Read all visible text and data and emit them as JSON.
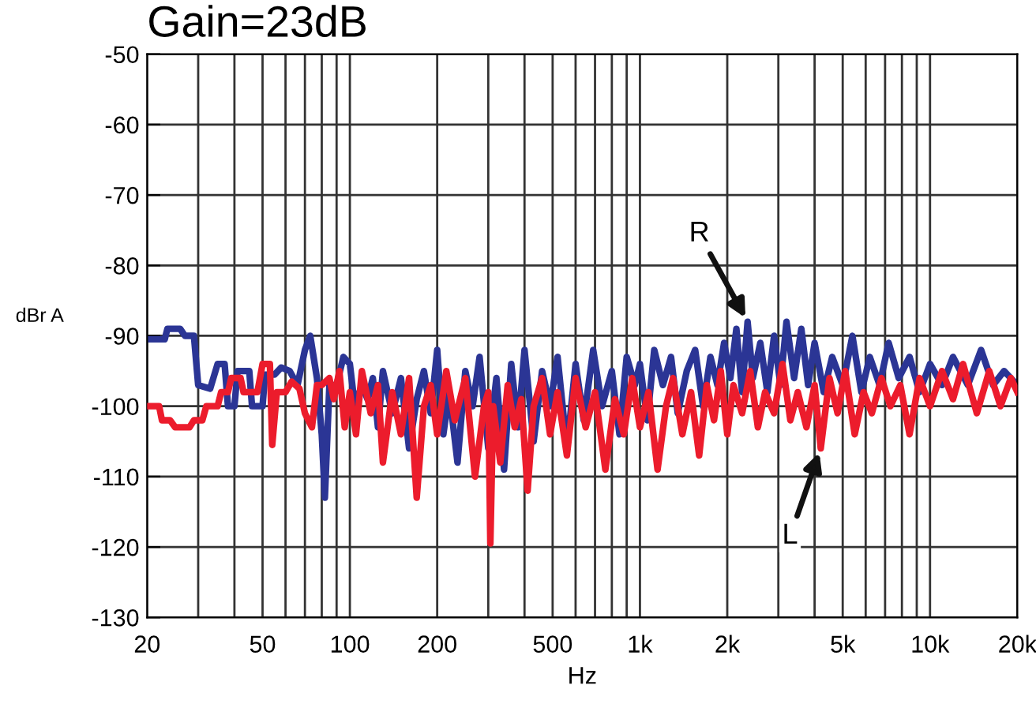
{
  "chart_data": {
    "type": "line",
    "title": "Gain=23dB",
    "xlabel": "Hz",
    "ylabel": "dBr A",
    "log": "x",
    "grid": true,
    "marker": "none",
    "line_style": "solid",
    "xlim": [
      20,
      20000
    ],
    "ylim": [
      -130,
      -50
    ],
    "xticks": [
      20,
      {
        "value": 30,
        "label": null
      },
      {
        "value": 40,
        "label": null
      },
      50,
      {
        "value": 60,
        "label": null
      },
      {
        "value": 70,
        "label": null
      },
      {
        "value": 80,
        "label": null
      },
      {
        "value": 90,
        "label": null
      },
      100,
      200,
      {
        "value": 300,
        "label": null
      },
      {
        "value": 400,
        "label": null
      },
      500,
      {
        "value": 600,
        "label": null
      },
      {
        "value": 700,
        "label": null
      },
      {
        "value": 800,
        "label": null
      },
      {
        "value": 900,
        "label": null
      },
      {
        "value": 1000,
        "label": "1k"
      },
      {
        "value": 2000,
        "label": "2k"
      },
      {
        "value": 3000,
        "label": null
      },
      {
        "value": 4000,
        "label": null
      },
      {
        "value": 5000,
        "label": "5k"
      },
      {
        "value": 6000,
        "label": null
      },
      {
        "value": 7000,
        "label": null
      },
      {
        "value": 8000,
        "label": null
      },
      {
        "value": 9000,
        "label": null
      },
      {
        "value": 10000,
        "label": "10k"
      },
      {
        "value": 20000,
        "label": "20k"
      }
    ],
    "yticks": [
      -130,
      -120,
      -110,
      -100,
      -90,
      -80,
      -70,
      -60,
      -50
    ],
    "annotations": [
      {
        "text": "R",
        "x": 2350,
        "y": -88
      },
      {
        "text": "L",
        "x": 4200,
        "y": -106
      }
    ],
    "series": [
      {
        "color": "#2b3595",
        "x": [
          20,
          23,
          23.5,
          26,
          27,
          29,
          30,
          33,
          35,
          37,
          38,
          40,
          41,
          45,
          46,
          50,
          51,
          55,
          58,
          62,
          66,
          70,
          73,
          77,
          80,
          82,
          85,
          90,
          95,
          100,
          104,
          110,
          115,
          120,
          125,
          130,
          140,
          150,
          160,
          170,
          180,
          190,
          200,
          210,
          220,
          235,
          250,
          265,
          280,
          300,
          320,
          340,
          360,
          380,
          400,
          430,
          460,
          490,
          520,
          560,
          600,
          640,
          690,
          740,
          800,
          850,
          900,
          960,
          1000,
          1060,
          1120,
          1200,
          1280,
          1350,
          1450,
          1550,
          1650,
          1750,
          1850,
          1950,
          2050,
          2150,
          2250,
          2350,
          2450,
          2600,
          2750,
          2900,
          3050,
          3200,
          3400,
          3600,
          3800,
          4000,
          4300,
          4600,
          5000,
          5400,
          5800,
          6200,
          6700,
          7200,
          7800,
          8500,
          9200,
          10000,
          11000,
          12000,
          13500,
          15000,
          16500,
          18000,
          20000
        ],
        "values": [
          -90.5,
          -90.5,
          -89,
          -89,
          -90,
          -90,
          -97,
          -97.5,
          -94,
          -94,
          -100,
          -100,
          -95,
          -95,
          -100,
          -100,
          -95.5,
          -95.5,
          -94.5,
          -95,
          -97,
          -92,
          -90,
          -96,
          -104,
          -113,
          -97,
          -97,
          -93,
          -94,
          -100,
          -97,
          -99,
          -96,
          -103,
          -95,
          -101,
          -96,
          -106,
          -99,
          -95,
          -101,
          -92,
          -104,
          -98,
          -108,
          -95,
          -100,
          -93,
          -106,
          -96,
          -109,
          -94,
          -103,
          -92,
          -105,
          -95,
          -100,
          -93,
          -106,
          -94,
          -102,
          -92,
          -100,
          -95,
          -104,
          -93,
          -97,
          -94,
          -102,
          -92,
          -97,
          -93,
          -101,
          -95,
          -92,
          -100,
          -93,
          -97,
          -91,
          -96,
          -89,
          -98,
          -88,
          -96,
          -91,
          -98,
          -90,
          -97,
          -88,
          -96,
          -89,
          -97,
          -91,
          -98,
          -93,
          -97,
          -90,
          -98,
          -93,
          -97,
          -91,
          -96,
          -93,
          -98,
          -94,
          -97,
          -93,
          -97,
          -92,
          -97,
          -95,
          -97
        ]
      },
      {
        "color": "#ec1c2c",
        "x": [
          20,
          22,
          22.5,
          24,
          25,
          28,
          29,
          31,
          32,
          35,
          36,
          38,
          39,
          42,
          43,
          48,
          50,
          53,
          54,
          56,
          60,
          63,
          67,
          70,
          74,
          77,
          80,
          85,
          88,
          92,
          96,
          100,
          105,
          110,
          118,
          125,
          130,
          140,
          150,
          160,
          170,
          180,
          190,
          200,
          215,
          230,
          250,
          270,
          290,
          300,
          305,
          312,
          330,
          350,
          370,
          390,
          410,
          430,
          460,
          490,
          520,
          560,
          600,
          650,
          700,
          760,
          820,
          880,
          940,
          1000,
          1070,
          1150,
          1230,
          1300,
          1400,
          1500,
          1600,
          1700,
          1800,
          1900,
          2000,
          2100,
          2250,
          2400,
          2550,
          2700,
          2900,
          3100,
          3300,
          3500,
          3750,
          4000,
          4200,
          4500,
          4800,
          5100,
          5500,
          5900,
          6300,
          6800,
          7300,
          7900,
          8500,
          9200,
          10000,
          11000,
          12000,
          13000,
          14500,
          16000,
          17500,
          19000,
          20000
        ],
        "values": [
          -100,
          -100,
          -102,
          -102,
          -103,
          -103,
          -102,
          -102,
          -100,
          -100,
          -98,
          -98,
          -96,
          -96,
          -98,
          -98,
          -94,
          -94,
          -105.5,
          -98,
          -98,
          -96.5,
          -97.5,
          -101,
          -103,
          -97,
          -97,
          -96,
          -99,
          -95,
          -103,
          -98,
          -104,
          -95,
          -101,
          -97,
          -108,
          -98,
          -104,
          -96,
          -113,
          -100,
          -97,
          -104,
          -95,
          -102,
          -96,
          -110,
          -100,
          -98,
          -119.5,
          -100,
          -108,
          -97,
          -103,
          -99,
          -112,
          -100,
          -96,
          -104,
          -98,
          -107,
          -96,
          -103,
          -98,
          -109,
          -99,
          -104,
          -96,
          -103,
          -98,
          -109,
          -100,
          -96,
          -104,
          -98,
          -107,
          -97,
          -102,
          -95,
          -104,
          -97,
          -101,
          -95,
          -103,
          -98,
          -101,
          -94,
          -102,
          -98,
          -103,
          -97,
          -106,
          -96,
          -101,
          -95,
          -104,
          -98,
          -101,
          -96,
          -100,
          -97,
          -104,
          -96,
          -100,
          -95,
          -99,
          -94,
          -101,
          -95,
          -100,
          -96,
          -98
        ]
      }
    ]
  }
}
